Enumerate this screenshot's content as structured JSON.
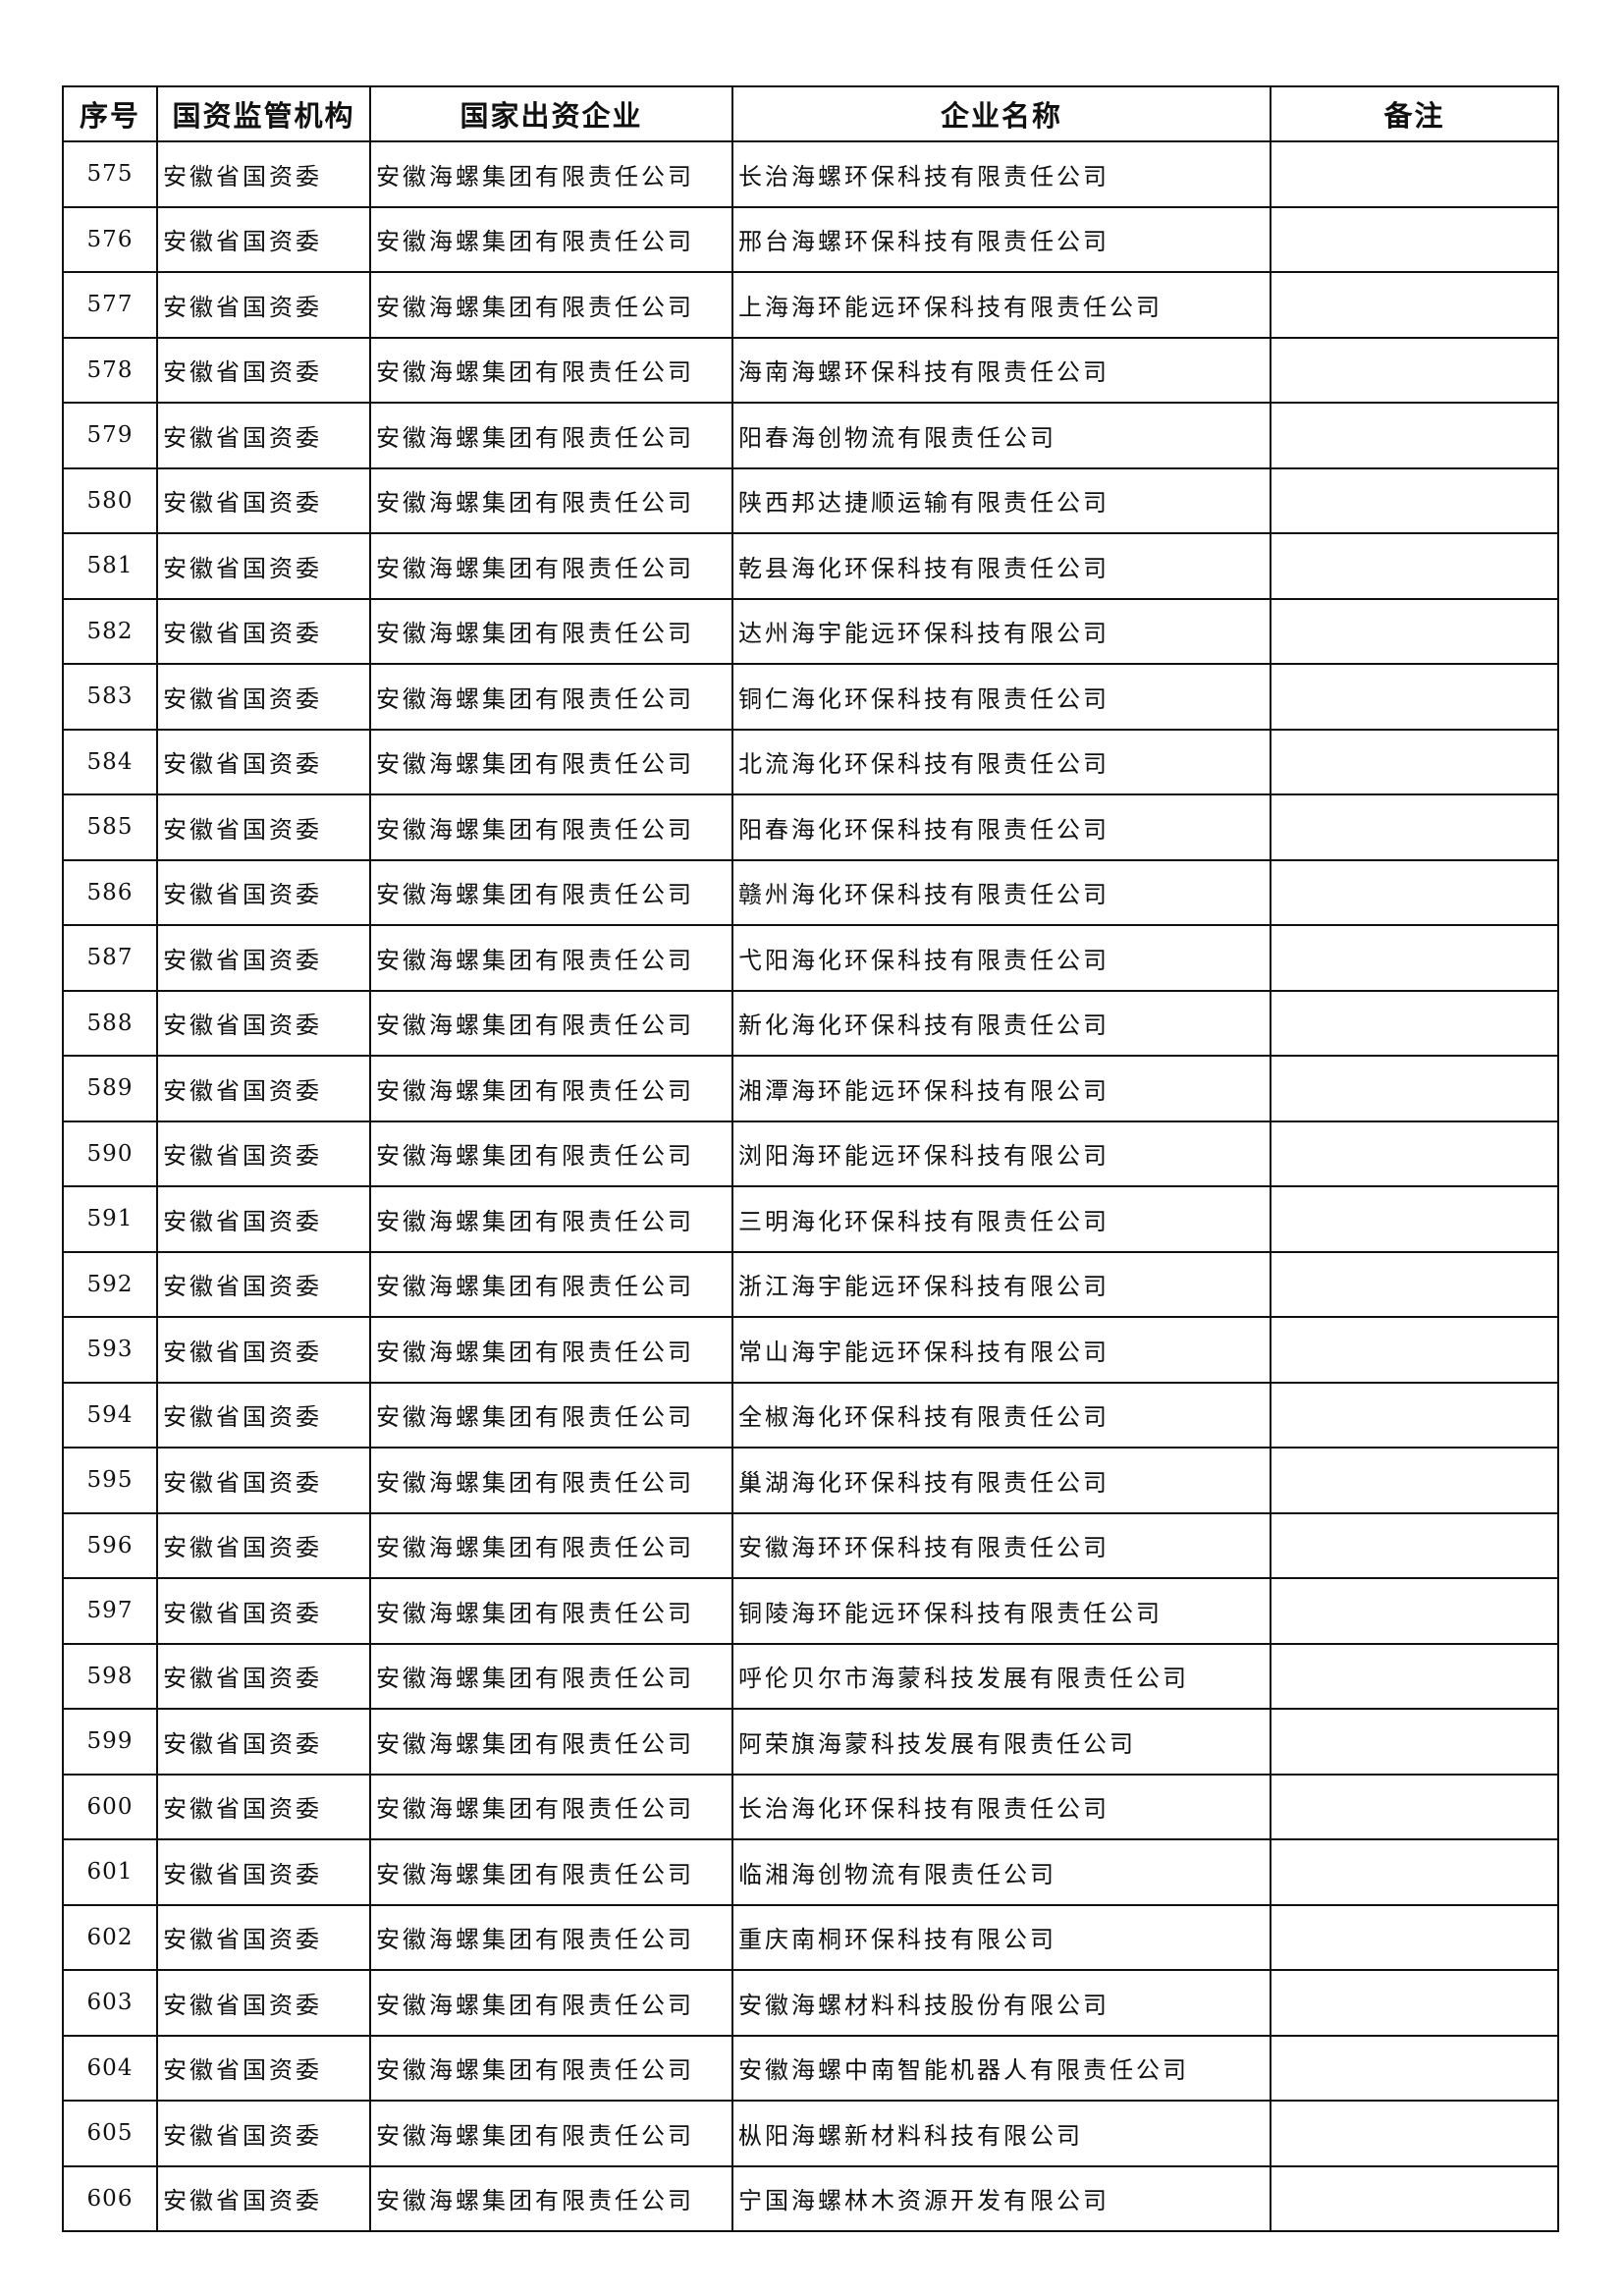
{
  "headers": [
    "序号",
    "国资监管机构",
    "国家出资企业",
    "企业名称",
    "备注"
  ],
  "rows": [
    {
      "no": "575",
      "regulator": "安徽省国资委",
      "investor": "安徽海螺集团有限责任公司",
      "company": "长治海螺环保科技有限责任公司",
      "note": ""
    },
    {
      "no": "576",
      "regulator": "安徽省国资委",
      "investor": "安徽海螺集团有限责任公司",
      "company": "邢台海螺环保科技有限责任公司",
      "note": ""
    },
    {
      "no": "577",
      "regulator": "安徽省国资委",
      "investor": "安徽海螺集团有限责任公司",
      "company": "上海海环能远环保科技有限责任公司",
      "note": ""
    },
    {
      "no": "578",
      "regulator": "安徽省国资委",
      "investor": "安徽海螺集团有限责任公司",
      "company": "海南海螺环保科技有限责任公司",
      "note": ""
    },
    {
      "no": "579",
      "regulator": "安徽省国资委",
      "investor": "安徽海螺集团有限责任公司",
      "company": "阳春海创物流有限责任公司",
      "note": ""
    },
    {
      "no": "580",
      "regulator": "安徽省国资委",
      "investor": "安徽海螺集团有限责任公司",
      "company": "陕西邦达捷顺运输有限责任公司",
      "note": ""
    },
    {
      "no": "581",
      "regulator": "安徽省国资委",
      "investor": "安徽海螺集团有限责任公司",
      "company": "乾县海化环保科技有限责任公司",
      "note": ""
    },
    {
      "no": "582",
      "regulator": "安徽省国资委",
      "investor": "安徽海螺集团有限责任公司",
      "company": "达州海宇能远环保科技有限公司",
      "note": ""
    },
    {
      "no": "583",
      "regulator": "安徽省国资委",
      "investor": "安徽海螺集团有限责任公司",
      "company": "铜仁海化环保科技有限责任公司",
      "note": ""
    },
    {
      "no": "584",
      "regulator": "安徽省国资委",
      "investor": "安徽海螺集团有限责任公司",
      "company": "北流海化环保科技有限责任公司",
      "note": ""
    },
    {
      "no": "585",
      "regulator": "安徽省国资委",
      "investor": "安徽海螺集团有限责任公司",
      "company": "阳春海化环保科技有限责任公司",
      "note": ""
    },
    {
      "no": "586",
      "regulator": "安徽省国资委",
      "investor": "安徽海螺集团有限责任公司",
      "company": "赣州海化环保科技有限责任公司",
      "note": ""
    },
    {
      "no": "587",
      "regulator": "安徽省国资委",
      "investor": "安徽海螺集团有限责任公司",
      "company": "弋阳海化环保科技有限责任公司",
      "note": ""
    },
    {
      "no": "588",
      "regulator": "安徽省国资委",
      "investor": "安徽海螺集团有限责任公司",
      "company": "新化海化环保科技有限责任公司",
      "note": ""
    },
    {
      "no": "589",
      "regulator": "安徽省国资委",
      "investor": "安徽海螺集团有限责任公司",
      "company": "湘潭海环能远环保科技有限公司",
      "note": ""
    },
    {
      "no": "590",
      "regulator": "安徽省国资委",
      "investor": "安徽海螺集团有限责任公司",
      "company": "浏阳海环能远环保科技有限公司",
      "note": ""
    },
    {
      "no": "591",
      "regulator": "安徽省国资委",
      "investor": "安徽海螺集团有限责任公司",
      "company": "三明海化环保科技有限责任公司",
      "note": ""
    },
    {
      "no": "592",
      "regulator": "安徽省国资委",
      "investor": "安徽海螺集团有限责任公司",
      "company": "浙江海宇能远环保科技有限公司",
      "note": ""
    },
    {
      "no": "593",
      "regulator": "安徽省国资委",
      "investor": "安徽海螺集团有限责任公司",
      "company": "常山海宇能远环保科技有限公司",
      "note": ""
    },
    {
      "no": "594",
      "regulator": "安徽省国资委",
      "investor": "安徽海螺集团有限责任公司",
      "company": "全椒海化环保科技有限责任公司",
      "note": ""
    },
    {
      "no": "595",
      "regulator": "安徽省国资委",
      "investor": "安徽海螺集团有限责任公司",
      "company": "巢湖海化环保科技有限责任公司",
      "note": ""
    },
    {
      "no": "596",
      "regulator": "安徽省国资委",
      "investor": "安徽海螺集团有限责任公司",
      "company": "安徽海环环保科技有限责任公司",
      "note": ""
    },
    {
      "no": "597",
      "regulator": "安徽省国资委",
      "investor": "安徽海螺集团有限责任公司",
      "company": "铜陵海环能远环保科技有限责任公司",
      "note": ""
    },
    {
      "no": "598",
      "regulator": "安徽省国资委",
      "investor": "安徽海螺集团有限责任公司",
      "company": "呼伦贝尔市海蒙科技发展有限责任公司",
      "note": ""
    },
    {
      "no": "599",
      "regulator": "安徽省国资委",
      "investor": "安徽海螺集团有限责任公司",
      "company": "阿荣旗海蒙科技发展有限责任公司",
      "note": ""
    },
    {
      "no": "600",
      "regulator": "安徽省国资委",
      "investor": "安徽海螺集团有限责任公司",
      "company": "长治海化环保科技有限责任公司",
      "note": ""
    },
    {
      "no": "601",
      "regulator": "安徽省国资委",
      "investor": "安徽海螺集团有限责任公司",
      "company": "临湘海创物流有限责任公司",
      "note": ""
    },
    {
      "no": "602",
      "regulator": "安徽省国资委",
      "investor": "安徽海螺集团有限责任公司",
      "company": "重庆南桐环保科技有限公司",
      "note": ""
    },
    {
      "no": "603",
      "regulator": "安徽省国资委",
      "investor": "安徽海螺集团有限责任公司",
      "company": "安徽海螺材料科技股份有限公司",
      "note": ""
    },
    {
      "no": "604",
      "regulator": "安徽省国资委",
      "investor": "安徽海螺集团有限责任公司",
      "company": "安徽海螺中南智能机器人有限责任公司",
      "note": ""
    },
    {
      "no": "605",
      "regulator": "安徽省国资委",
      "investor": "安徽海螺集团有限责任公司",
      "company": "枞阳海螺新材料科技有限公司",
      "note": ""
    },
    {
      "no": "606",
      "regulator": "安徽省国资委",
      "investor": "安徽海螺集团有限责任公司",
      "company": "宁国海螺林木资源开发有限公司",
      "note": ""
    }
  ]
}
